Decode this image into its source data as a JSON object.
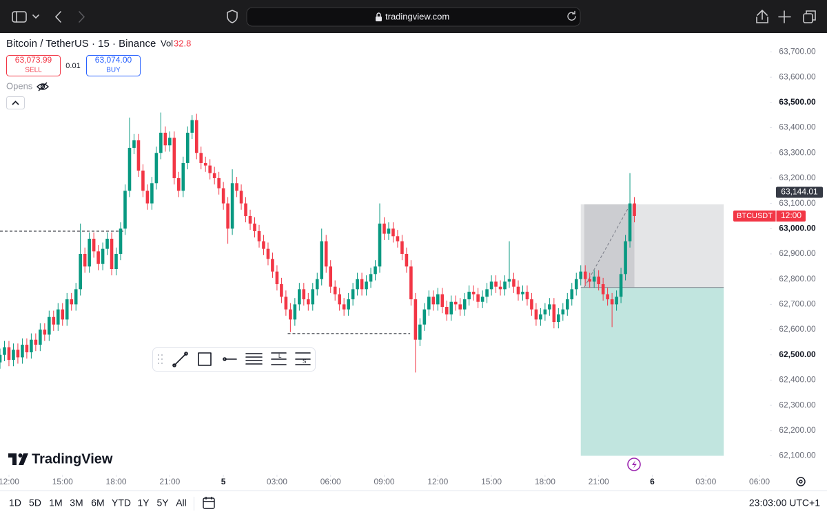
{
  "browser": {
    "url": "tradingview.com"
  },
  "header": {
    "symbol": "Bitcoin / TetherUS · 15 · Binance",
    "vol_label": "Vol",
    "vol_value": "32.8",
    "sell_price": "63,073.99",
    "sell_label": "SELL",
    "spread": "0.01",
    "buy_price": "63,074.00",
    "buy_label": "BUY",
    "opens": "Opens"
  },
  "logo": "TradingView",
  "chart_data": {
    "type": "candlestick",
    "up_color": "#089981",
    "down_color": "#f23645",
    "x": [
      11.5,
      11.75,
      12,
      12.25,
      12.5,
      12.75,
      13,
      13.25,
      13.5,
      13.75,
      14,
      14.25,
      14.5,
      14.75,
      15,
      15.25,
      15.5,
      15.75,
      16,
      16.25,
      16.5,
      16.75,
      17,
      17.25,
      17.5,
      17.75,
      18,
      18.25,
      18.5,
      18.75,
      19,
      19.25,
      19.5,
      19.75,
      20,
      20.25,
      20.5,
      20.75,
      21,
      21.25,
      21.5,
      21.75,
      22,
      22.25,
      22.5,
      22.75,
      23,
      23.25,
      23.5,
      23.75,
      24,
      24.25,
      24.5,
      24.75,
      25,
      25.25,
      25.5,
      25.75,
      26,
      26.25,
      26.5,
      26.75,
      27,
      27.25,
      27.5,
      27.75,
      28,
      28.25,
      28.5,
      28.75,
      29,
      29.25,
      29.5,
      29.75,
      30,
      30.25,
      30.5,
      30.75,
      31,
      31.25,
      31.5,
      31.75,
      32,
      32.25,
      32.5,
      32.75,
      33,
      33.25,
      33.5,
      33.75,
      34,
      34.25,
      34.5,
      34.75,
      35,
      35.25,
      35.5,
      35.75,
      36,
      36.25,
      36.5,
      36.75,
      37,
      37.25,
      37.5,
      37.75,
      38,
      38.25,
      38.5,
      38.75,
      39,
      39.25,
      39.5,
      39.75,
      40,
      40.25,
      40.5,
      40.75,
      41,
      41.25,
      41.5,
      41.75,
      42,
      42.25,
      42.5,
      42.75,
      43,
      43.25,
      43.5,
      43.75,
      44,
      44.25,
      44.5,
      44.75,
      45,
      45.25,
      45.5,
      45.75,
      46,
      46.25,
      46.5,
      46.75,
      47
    ],
    "open": [
      62470,
      62500,
      62530,
      62480,
      62520,
      62490,
      62540,
      62510,
      62560,
      62540,
      62600,
      62580,
      62650,
      62620,
      62680,
      62640,
      62720,
      62700,
      62760,
      62900,
      62850,
      62960,
      62910,
      62860,
      62920,
      62960,
      62840,
      62900,
      63000,
      63150,
      63320,
      63350,
      63230,
      63150,
      63100,
      63180,
      63300,
      63380,
      63330,
      63360,
      63200,
      63150,
      63260,
      63380,
      63430,
      63300,
      63260,
      63250,
      63220,
      63200,
      63160,
      63100,
      63000,
      63180,
      63150,
      63100,
      63050,
      63020,
      62990,
      62950,
      62920,
      62880,
      62830,
      62780,
      62730,
      62680,
      62640,
      62700,
      62760,
      62720,
      62700,
      62760,
      62800,
      62950,
      62850,
      62770,
      62740,
      62700,
      62680,
      62720,
      62760,
      62800,
      62760,
      62790,
      62820,
      62850,
      63020,
      62980,
      63000,
      62970,
      62950,
      62900,
      62850,
      62720,
      62560,
      62620,
      62680,
      62730,
      62700,
      62740,
      62690,
      62660,
      62710,
      62700,
      62680,
      62720,
      62750,
      62740,
      62710,
      62730,
      62760,
      62790,
      62770,
      62760,
      62790,
      62800,
      62770,
      62740,
      62750,
      62720,
      62680,
      62640,
      62660,
      62680,
      62700,
      62630,
      62660,
      62680,
      62720,
      62760,
      62800,
      62830,
      62800,
      62790,
      62810,
      62780,
      62740,
      62720,
      62700,
      62730,
      62820,
      62950,
      63100
    ],
    "high": [
      62525,
      62555,
      62555,
      62545,
      62545,
      62565,
      62565,
      62585,
      62585,
      62625,
      62625,
      62675,
      62675,
      62705,
      62705,
      62745,
      62745,
      62785,
      63020,
      62925,
      62985,
      62985,
      62935,
      62945,
      62985,
      62985,
      62925,
      63025,
      63175,
      63440,
      63375,
      63375,
      63255,
      63175,
      63205,
      63325,
      63460,
      63405,
      63385,
      63385,
      63225,
      63285,
      63405,
      63450,
      63455,
      63325,
      63285,
      63275,
      63245,
      63225,
      63185,
      63125,
      63235,
      63205,
      63175,
      63125,
      63075,
      63045,
      63015,
      62975,
      62945,
      62905,
      62855,
      62805,
      62755,
      62705,
      62725,
      62785,
      62785,
      62745,
      62785,
      62825,
      63000,
      62975,
      62875,
      62795,
      62765,
      62725,
      62745,
      62785,
      62825,
      62825,
      62815,
      62845,
      62875,
      63100,
      63045,
      63025,
      63025,
      62995,
      62975,
      62925,
      62875,
      62745,
      62645,
      62705,
      62755,
      62755,
      62765,
      62765,
      62715,
      62735,
      62735,
      62725,
      62745,
      62775,
      62775,
      62765,
      62755,
      62785,
      62815,
      62815,
      62795,
      62815,
      62950,
      62825,
      62795,
      62775,
      62775,
      62745,
      62705,
      62685,
      62705,
      62725,
      62725,
      62685,
      62705,
      62745,
      62785,
      62825,
      62855,
      62855,
      62825,
      62835,
      62835,
      62805,
      62765,
      62745,
      62755,
      62845,
      62975,
      63220,
      63125
    ],
    "low": [
      62445,
      62475,
      62455,
      62455,
      62465,
      62465,
      62485,
      62485,
      62515,
      62515,
      62555,
      62555,
      62595,
      62595,
      62615,
      62615,
      62675,
      62675,
      62735,
      62825,
      62825,
      62885,
      62835,
      62835,
      62895,
      62815,
      62815,
      62875,
      62975,
      63125,
      63295,
      63205,
      63125,
      63075,
      63075,
      63155,
      63275,
      63305,
      63305,
      63175,
      63125,
      63125,
      63235,
      63355,
      63275,
      63235,
      63225,
      63195,
      63175,
      63135,
      63075,
      62940,
      62975,
      63125,
      63075,
      63025,
      62995,
      62965,
      62925,
      62895,
      62855,
      62805,
      62755,
      62705,
      62655,
      62590,
      62615,
      62675,
      62695,
      62675,
      62675,
      62735,
      62775,
      62825,
      62745,
      62715,
      62675,
      62655,
      62655,
      62695,
      62735,
      62735,
      62735,
      62765,
      62795,
      62825,
      62955,
      62955,
      62945,
      62925,
      62875,
      62825,
      62695,
      62430,
      62535,
      62595,
      62655,
      62675,
      62675,
      62665,
      62635,
      62635,
      62675,
      62655,
      62655,
      62695,
      62715,
      62685,
      62685,
      62705,
      62735,
      62745,
      62735,
      62735,
      62765,
      62745,
      62715,
      62715,
      62695,
      62655,
      62615,
      62615,
      62635,
      62655,
      62605,
      62605,
      62635,
      62655,
      62695,
      62735,
      62775,
      62775,
      62765,
      62765,
      62755,
      62715,
      62695,
      62610,
      62675,
      62705,
      62795,
      62925,
      63025
    ],
    "close": [
      62500,
      62530,
      62480,
      62520,
      62490,
      62540,
      62510,
      62560,
      62540,
      62600,
      62580,
      62650,
      62620,
      62680,
      62640,
      62720,
      62700,
      62760,
      62900,
      62850,
      62960,
      62910,
      62860,
      62920,
      62960,
      62840,
      62900,
      63000,
      63150,
      63320,
      63350,
      63230,
      63150,
      63100,
      63180,
      63300,
      63380,
      63330,
      63360,
      63200,
      63150,
      63260,
      63380,
      63430,
      63300,
      63260,
      63250,
      63220,
      63200,
      63160,
      63100,
      63000,
      63180,
      63150,
      63100,
      63050,
      63020,
      62990,
      62950,
      62920,
      62880,
      62830,
      62780,
      62730,
      62680,
      62640,
      62700,
      62760,
      62720,
      62700,
      62760,
      62800,
      62950,
      62850,
      62770,
      62740,
      62700,
      62680,
      62720,
      62760,
      62800,
      62760,
      62790,
      62820,
      62850,
      63020,
      62980,
      63000,
      62970,
      62950,
      62900,
      62850,
      62720,
      62560,
      62620,
      62680,
      62730,
      62700,
      62740,
      62690,
      62660,
      62710,
      62700,
      62680,
      62720,
      62750,
      62740,
      62710,
      62730,
      62760,
      62790,
      62770,
      62760,
      62790,
      62800,
      62770,
      62740,
      62750,
      62720,
      62680,
      62640,
      62660,
      62680,
      62700,
      62630,
      62660,
      62680,
      62720,
      62760,
      62800,
      62830,
      62800,
      62790,
      62810,
      62780,
      62740,
      62720,
      62700,
      62730,
      62820,
      62950,
      63100,
      63050
    ],
    "xlim": [
      11.5,
      54.5
    ],
    "xticks": [
      {
        "value": 12,
        "label": "12:00"
      },
      {
        "value": 15,
        "label": "15:00"
      },
      {
        "value": 18,
        "label": "18:00"
      },
      {
        "value": 21,
        "label": "21:00"
      },
      {
        "value": 24,
        "label": "5"
      },
      {
        "value": 27,
        "label": "03:00"
      },
      {
        "value": 30,
        "label": "06:00"
      },
      {
        "value": 33,
        "label": "09:00"
      },
      {
        "value": 36,
        "label": "12:00"
      },
      {
        "value": 39,
        "label": "15:00"
      },
      {
        "value": 42,
        "label": "18:00"
      },
      {
        "value": 45,
        "label": "21:00"
      },
      {
        "value": 48,
        "label": "6"
      },
      {
        "value": 51,
        "label": "03:00"
      },
      {
        "value": 54,
        "label": "06:00"
      }
    ],
    "ylim": [
      62025,
      63775
    ],
    "yticks": [
      {
        "value": 62100,
        "label": "62,100.00"
      },
      {
        "value": 62200,
        "label": "62,200.00"
      },
      {
        "value": 62300,
        "label": "62,300.00"
      },
      {
        "value": 62400,
        "label": "62,400.00"
      },
      {
        "value": 62500,
        "label": "62,500.00"
      },
      {
        "value": 62600,
        "label": "62,600.00"
      },
      {
        "value": 62700,
        "label": "62,700.00"
      },
      {
        "value": 62800,
        "label": "62,800.00"
      },
      {
        "value": 62900,
        "label": "62,900.00"
      },
      {
        "value": 63000,
        "label": "63,000.00"
      },
      {
        "value": 63100,
        "label": "63,100.00"
      },
      {
        "value": 63200,
        "label": "63,200.00"
      },
      {
        "value": 63300,
        "label": "63,300.00"
      },
      {
        "value": 63400,
        "label": "63,400.00"
      },
      {
        "value": 63500,
        "label": "63,500.00"
      },
      {
        "value": 63600,
        "label": "63,600.00"
      },
      {
        "value": 63700,
        "label": "63,700.00"
      }
    ],
    "lines": [
      {
        "y": 62990,
        "x": [
          11.5,
          18.5
        ]
      },
      {
        "y": 62584,
        "x": [
          27.6,
          34.45
        ]
      }
    ],
    "position": {
      "x": [
        44,
        52
      ],
      "stop": 63096,
      "entry": 62767,
      "target": 62100
    },
    "price_label": {
      "value": 63144.01,
      "label": "63,144.01"
    },
    "symbol_label": "BTCUSDT",
    "countdown": "12:00"
  },
  "footer": {
    "ranges": [
      "1D",
      "5D",
      "1M",
      "3M",
      "6M",
      "YTD",
      "1Y",
      "5Y",
      "All"
    ],
    "clock": "23:03:00 UTC+1"
  }
}
